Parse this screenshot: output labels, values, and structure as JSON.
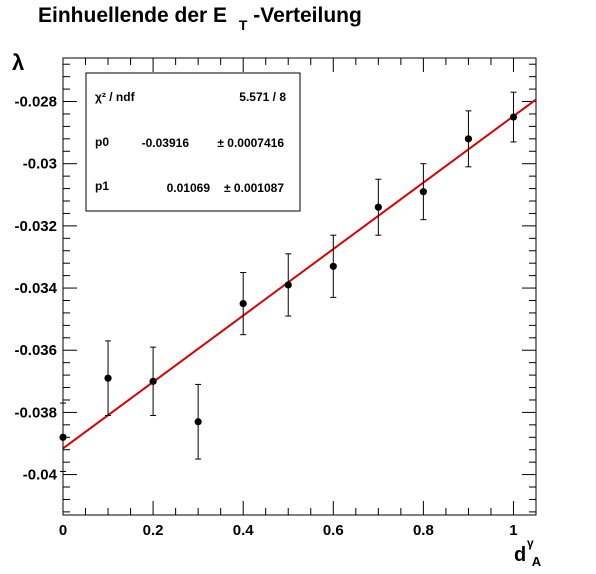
{
  "chart_data": {
    "type": "scatter",
    "title": {
      "main": "Einhuellende der E",
      "subscript": "T",
      "suffix": "-Verteilung"
    },
    "xlabel": {
      "main": "d",
      "subscript": "A",
      "superscript": "γ"
    },
    "ylabel": "λ",
    "xlim": [
      0,
      1.05
    ],
    "ylim": [
      -0.0413,
      -0.0266
    ],
    "x_ticks": [
      {
        "value": 0,
        "label": "0"
      },
      {
        "value": 0.2,
        "label": "0.2"
      },
      {
        "value": 0.4,
        "label": "0.4"
      },
      {
        "value": 0.6,
        "label": "0.6"
      },
      {
        "value": 0.8,
        "label": "0.8"
      },
      {
        "value": 1,
        "label": "1"
      }
    ],
    "y_ticks": [
      {
        "value": -0.04,
        "label": "-0.04"
      },
      {
        "value": -0.038,
        "label": "-0.038"
      },
      {
        "value": -0.036,
        "label": "-0.036"
      },
      {
        "value": -0.034,
        "label": "-0.034"
      },
      {
        "value": -0.032,
        "label": "-0.032"
      },
      {
        "value": -0.03,
        "label": "-0.03"
      },
      {
        "value": -0.028,
        "label": "-0.028"
      }
    ],
    "grid": false,
    "points": [
      {
        "x": 0.0,
        "y": -0.0388,
        "err": 0.0011
      },
      {
        "x": 0.1,
        "y": -0.0369,
        "err": 0.0012
      },
      {
        "x": 0.2,
        "y": -0.037,
        "err": 0.0011
      },
      {
        "x": 0.3,
        "y": -0.0383,
        "err": 0.0012
      },
      {
        "x": 0.4,
        "y": -0.0345,
        "err": 0.001
      },
      {
        "x": 0.5,
        "y": -0.0339,
        "err": 0.001
      },
      {
        "x": 0.6,
        "y": -0.0333,
        "err": 0.001
      },
      {
        "x": 0.7,
        "y": -0.0314,
        "err": 0.0009
      },
      {
        "x": 0.8,
        "y": -0.0309,
        "err": 0.0009
      },
      {
        "x": 0.9,
        "y": -0.0292,
        "err": 0.0009
      },
      {
        "x": 1.0,
        "y": -0.0285,
        "err": 0.0008
      }
    ],
    "fit": {
      "p0": -0.03916,
      "p1": 0.01069,
      "color": "#dd0000"
    },
    "marker_color": "#000000",
    "stats_box": {
      "chi2_label": "χ² / ndf",
      "chi2_value": "5.571 / 8",
      "p0_label": "p0",
      "p0_value": "-0.03916",
      "p0_error": "± 0.0007416",
      "p1_label": "p1",
      "p1_value": "0.01069",
      "p1_error": "± 0.001087"
    }
  }
}
